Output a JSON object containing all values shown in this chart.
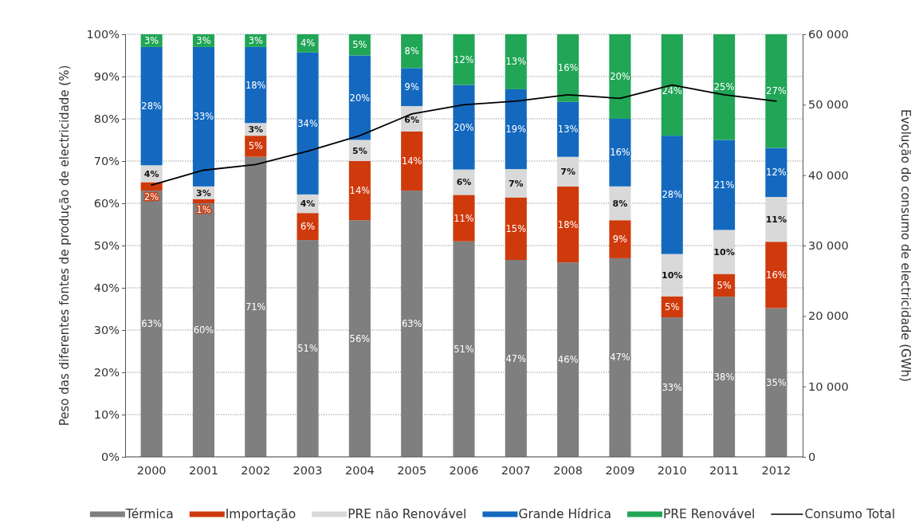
{
  "chart_data": {
    "type": "bar",
    "stacked": true,
    "categories": [
      "2000",
      "2001",
      "2002",
      "2003",
      "2004",
      "2005",
      "2006",
      "2007",
      "2008",
      "2009",
      "2010",
      "2011",
      "2012"
    ],
    "series": [
      {
        "name": "Térmica",
        "color": "#7f7f7f",
        "values": [
          63,
          60,
          71,
          51.3,
          56,
          63,
          51,
          46.6,
          46,
          47,
          33,
          37.9,
          35.2
        ],
        "value_labels": [
          "63%",
          "60%",
          "71%",
          "51%",
          "56%",
          "63%",
          "51%",
          "47%",
          "46%",
          "47%",
          "33%",
          "38%",
          "35%"
        ]
      },
      {
        "name": "Importação",
        "color": "#cf3a0c",
        "values": [
          2,
          1,
          5,
          6.4,
          14,
          14,
          11,
          14.8,
          18,
          9,
          5,
          5.4,
          15.7
        ],
        "value_labels": [
          "2%",
          "1%",
          "5%",
          "6%",
          "14%",
          "14%",
          "11%",
          "15%",
          "18%",
          "9%",
          "5%",
          "5%",
          "16%"
        ]
      },
      {
        "name": "PRE não Renovável",
        "color": "#d9d9d9",
        "values": [
          4,
          3,
          3,
          4.4,
          5,
          6,
          6,
          6.7,
          7,
          8,
          10,
          10.4,
          10.6
        ],
        "value_labels": [
          "4%",
          "3%",
          "3%",
          "4%",
          "5%",
          "6%",
          "6%",
          "7%",
          "7%",
          "8%",
          "10%",
          "10%",
          "11%"
        ]
      },
      {
        "name": "Grande Hídrica",
        "color": "#1469bf",
        "values": [
          28,
          33,
          18,
          33.6,
          20,
          9,
          20,
          18.9,
          13,
          16,
          28,
          21.3,
          11.6
        ],
        "value_labels": [
          "28%",
          "33%",
          "18%",
          "34%",
          "20%",
          "9%",
          "20%",
          "19%",
          "13%",
          "16%",
          "28%",
          "21%",
          "12%"
        ]
      },
      {
        "name": "PRE Renovável",
        "color": "#21a656",
        "values": [
          3,
          3,
          3,
          4.3,
          5,
          8,
          12,
          13,
          16,
          20,
          24,
          25,
          26.9
        ],
        "value_labels": [
          "3%",
          "3%",
          "3%",
          "4%",
          "5%",
          "8%",
          "12%",
          "13%",
          "16%",
          "20%",
          "24%",
          "25%",
          "27%"
        ]
      },
      {
        "name": "Consumo Total",
        "type": "line",
        "axis": "y2",
        "color": "#000000",
        "values": [
          38600,
          40700,
          41500,
          43400,
          45600,
          48700,
          50000,
          50500,
          51400,
          50900,
          52800,
          51400,
          50500
        ]
      }
    ],
    "ylabel": "Peso das diferentes fontes de produção de electricidade (%)",
    "y2label": "Evolução do consumo de electricidade (GWh)",
    "ylim": [
      0,
      100
    ],
    "yticks": [
      {
        "value": 0,
        "label": "0%"
      },
      {
        "value": 10,
        "label": "10%"
      },
      {
        "value": 20,
        "label": "20%"
      },
      {
        "value": 30,
        "label": "30%"
      },
      {
        "value": 40,
        "label": "40%"
      },
      {
        "value": 50,
        "label": "50%"
      },
      {
        "value": 60,
        "label": "60%"
      },
      {
        "value": 70,
        "label": "70%"
      },
      {
        "value": 80,
        "label": "80%"
      },
      {
        "value": 90,
        "label": "90%"
      },
      {
        "value": 100,
        "label": "100%"
      }
    ],
    "y2lim": [
      0,
      60000
    ],
    "y2ticks": [
      {
        "value": 0,
        "label": "0"
      },
      {
        "value": 10000,
        "label": "10 000"
      },
      {
        "value": 20000,
        "label": "20 000"
      },
      {
        "value": 30000,
        "label": "30 000"
      },
      {
        "value": 40000,
        "label": "40 000"
      },
      {
        "value": 50000,
        "label": "50 000"
      },
      {
        "value": 60000,
        "label": "60 000"
      }
    ],
    "grid": "y",
    "legend": "bottom"
  }
}
